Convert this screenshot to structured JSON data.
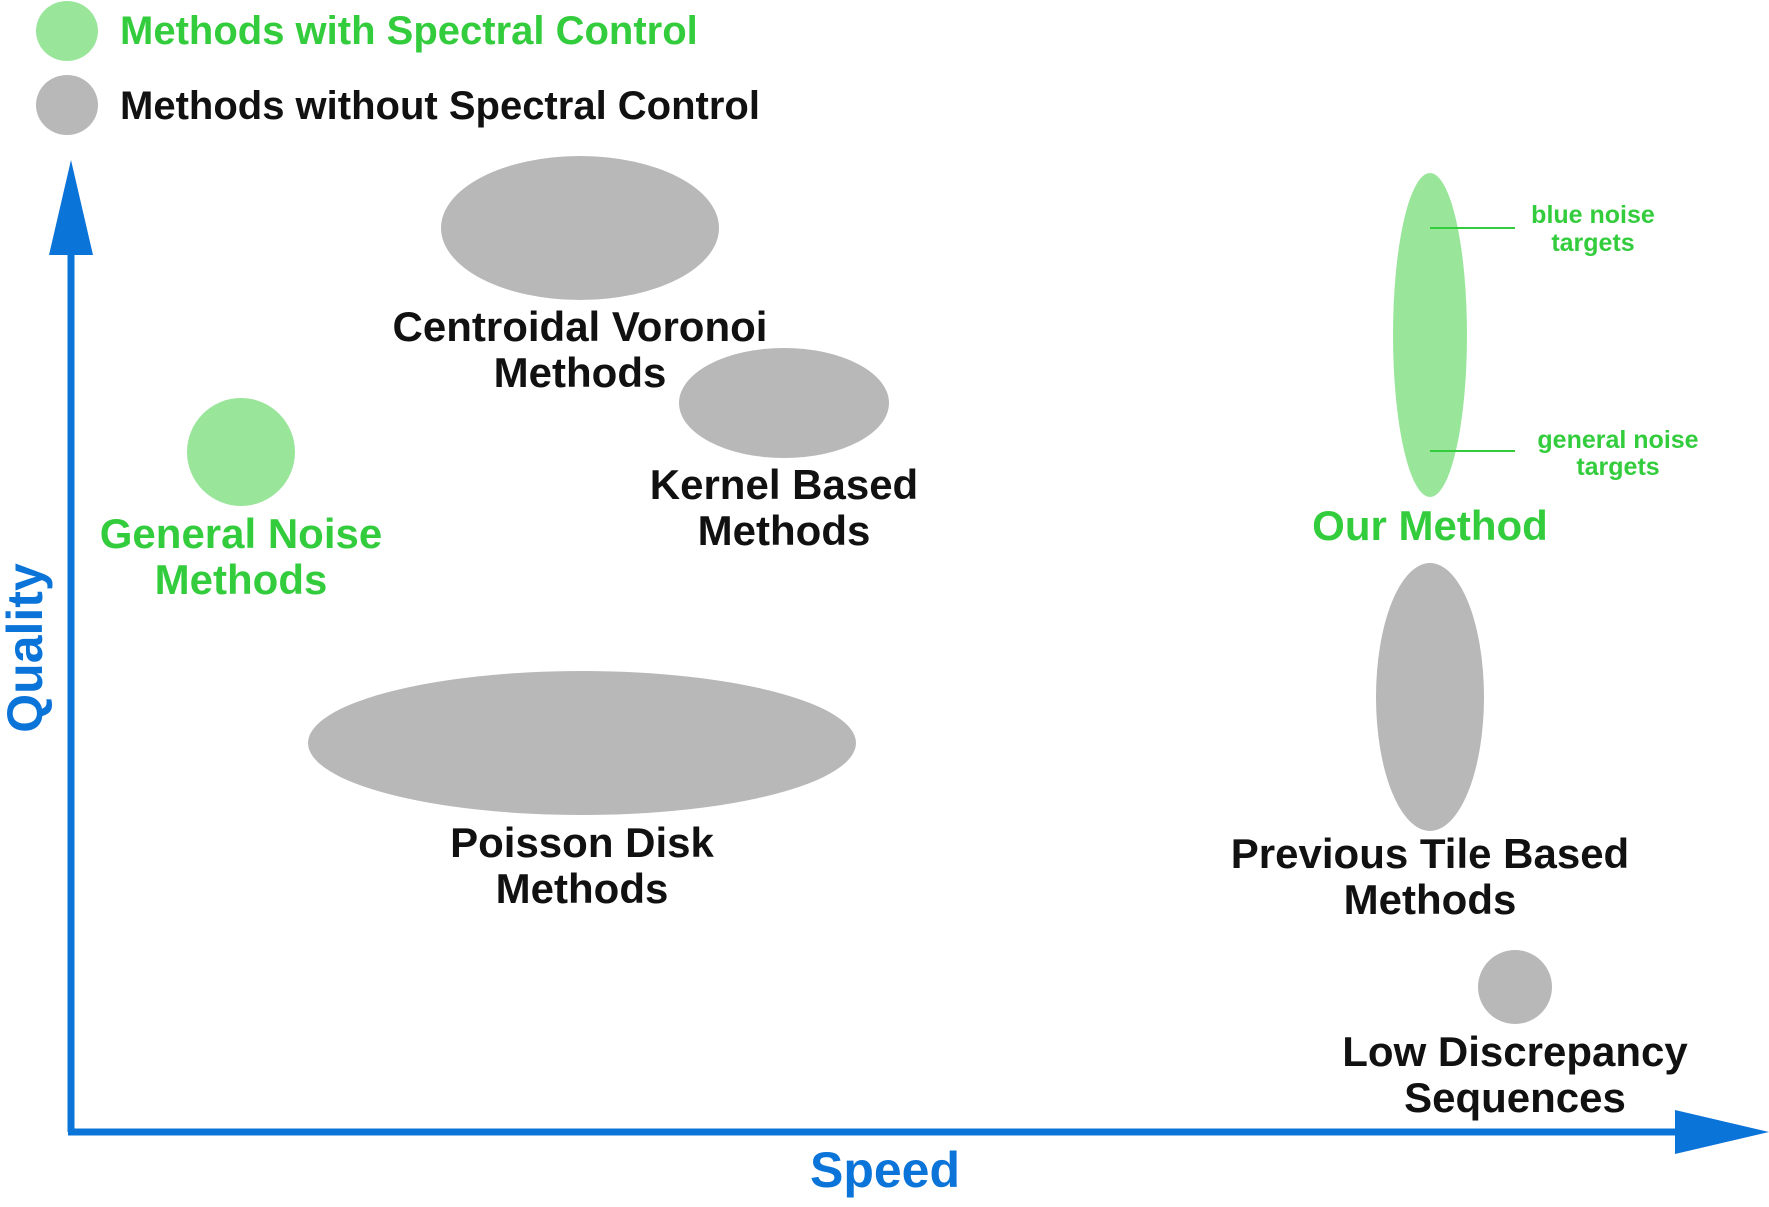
{
  "legend": {
    "items": [
      {
        "label": "Methods with Spectral Control",
        "color": "#99e69b",
        "text_color": "#33cc3d"
      },
      {
        "label": "Methods without Spectral Control",
        "color": "#b8b8b8",
        "text_color": "#111111"
      }
    ]
  },
  "axes": {
    "x_label": "Speed",
    "y_label": "Quality",
    "color": "#0b74d9"
  },
  "groups": [
    {
      "id": "centroidal-voronoi",
      "category": "without",
      "label_lines": [
        "Centroidal Voronoi",
        "Methods"
      ]
    },
    {
      "id": "kernel-based",
      "category": "without",
      "label_lines": [
        "Kernel Based",
        "Methods"
      ]
    },
    {
      "id": "general-noise",
      "category": "with",
      "label_lines": [
        "General Noise",
        "Methods"
      ]
    },
    {
      "id": "poisson-disk",
      "category": "without",
      "label_lines": [
        "Poisson Disk",
        "Methods"
      ]
    },
    {
      "id": "our-method",
      "category": "with",
      "label_lines": [
        "Our Method"
      ]
    },
    {
      "id": "previous-tile",
      "category": "without",
      "label_lines": [
        "Previous Tile Based",
        "Methods"
      ]
    },
    {
      "id": "low-discrepancy",
      "category": "without",
      "label_lines": [
        "Low Discrepancy",
        "Sequences"
      ]
    }
  ],
  "annotations": [
    {
      "id": "blue-noise",
      "lines": [
        "blue noise",
        "targets"
      ]
    },
    {
      "id": "general-noise-targets",
      "lines": [
        "general noise",
        "targets"
      ]
    }
  ],
  "colors": {
    "with": "#99e69b",
    "with_text": "#33cc3d",
    "without": "#b8b8b8",
    "without_text": "#111111",
    "axis": "#0b74d9"
  }
}
